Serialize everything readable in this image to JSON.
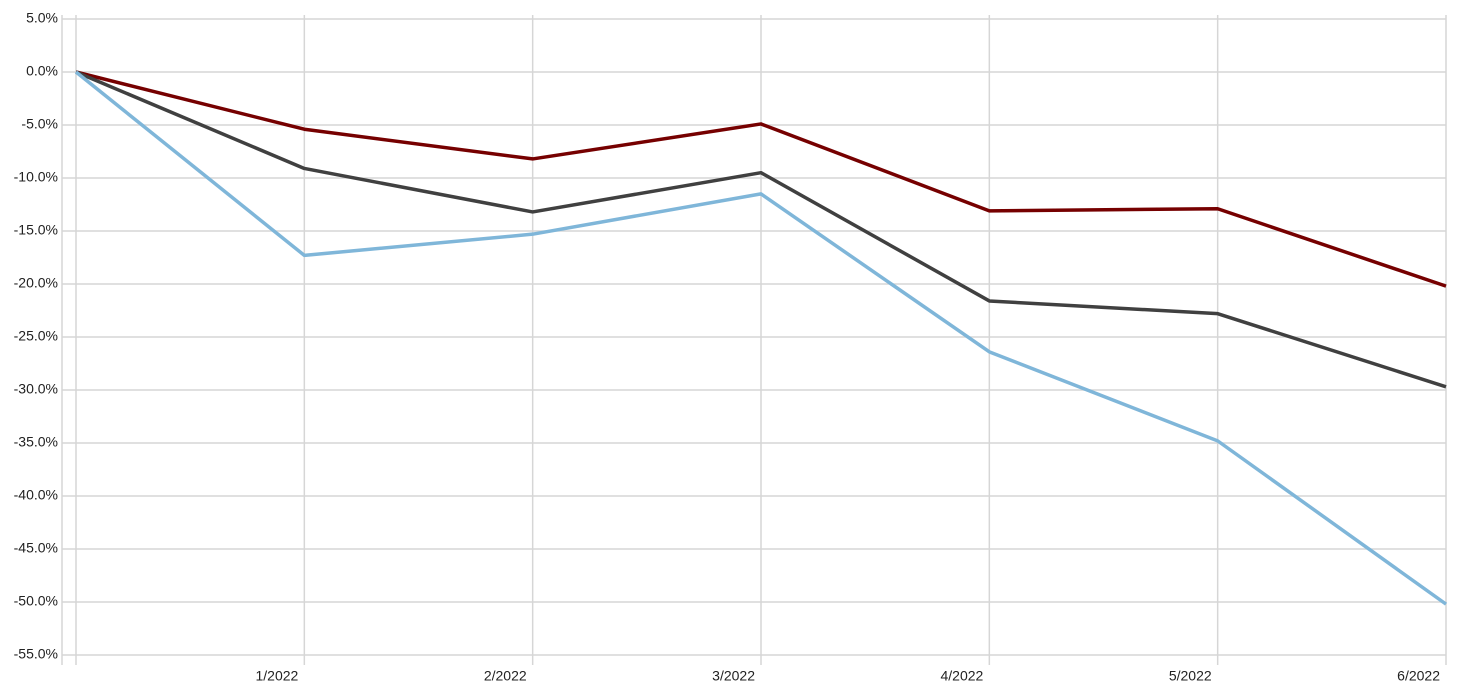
{
  "chart_data": {
    "type": "line",
    "categories": [
      null,
      "1/2022",
      "2/2022",
      "3/2022",
      "4/2022",
      "5/2022",
      "6/2022"
    ],
    "series": [
      {
        "color": "#760000",
        "values": [
          0,
          -5.4,
          -8.2,
          -4.9,
          -13.1,
          -12.9,
          -20.2
        ]
      },
      {
        "color": "#404040",
        "values": [
          0,
          -9.1,
          -13.2,
          -9.5,
          -21.6,
          -22.8,
          -29.7
        ]
      },
      {
        "color": "#7fb6d9",
        "values": [
          0,
          -17.3,
          -15.3,
          -11.5,
          -26.4,
          -34.8,
          -50.2
        ]
      }
    ],
    "ylim": [
      -55,
      5
    ],
    "yticks": [
      {
        "value": 5,
        "label": "5.0%"
      },
      {
        "value": 0,
        "label": "0.0%"
      },
      {
        "value": -5,
        "label": "-5.0%"
      },
      {
        "value": -10,
        "label": "-10.0%"
      },
      {
        "value": -15,
        "label": "-15.0%"
      },
      {
        "value": -20,
        "label": "-20.0%"
      },
      {
        "value": -25,
        "label": "-25.0%"
      },
      {
        "value": -30,
        "label": "-30.0%"
      },
      {
        "value": -35,
        "label": "-35.0%"
      },
      {
        "value": -40,
        "label": "-40.0%"
      },
      {
        "value": -45,
        "label": "-45.0%"
      },
      {
        "value": -50,
        "label": "-50.0%"
      },
      {
        "value": -55,
        "label": "-55.0%"
      }
    ],
    "grid": true
  }
}
